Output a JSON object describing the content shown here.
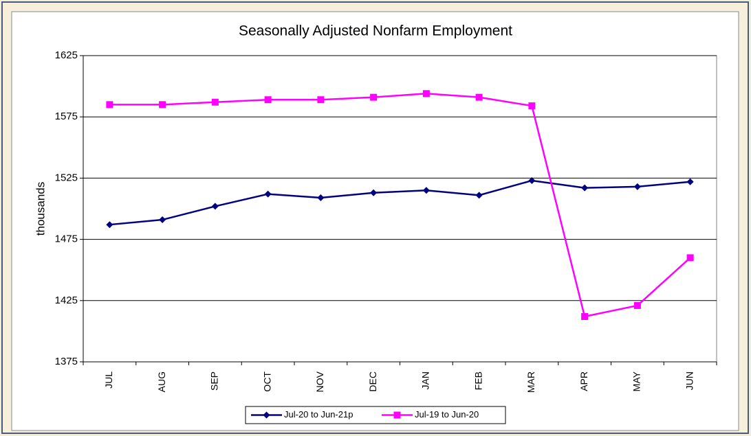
{
  "chart_data": {
    "type": "line",
    "title": "Seasonally Adjusted Nonfarm Employment",
    "y_label": "thousands",
    "categories": [
      "JUL",
      "AUG",
      "SEP",
      "OCT",
      "NOV",
      "DEC",
      "JAN",
      "FEB",
      "MAR",
      "APR",
      "MAY",
      "JUN"
    ],
    "series": [
      {
        "name": "Jul-20 to Jun-21p",
        "color": "#000080",
        "marker": "diamond",
        "values": [
          1487,
          1491,
          1502,
          1512,
          1509,
          1513,
          1515,
          1511,
          1523,
          1517,
          1518,
          1522
        ]
      },
      {
        "name": "Jul-19 to Jun-20",
        "color": "#ff00ff",
        "marker": "square",
        "values": [
          1585,
          1585,
          1587,
          1589,
          1589,
          1591,
          1594,
          1591,
          1584,
          1412,
          1421,
          1460
        ]
      }
    ],
    "ylim": [
      1375,
      1625
    ],
    "yticks": [
      1375,
      1425,
      1475,
      1525,
      1575,
      1625
    ],
    "grid": true,
    "legend": "bottom"
  }
}
